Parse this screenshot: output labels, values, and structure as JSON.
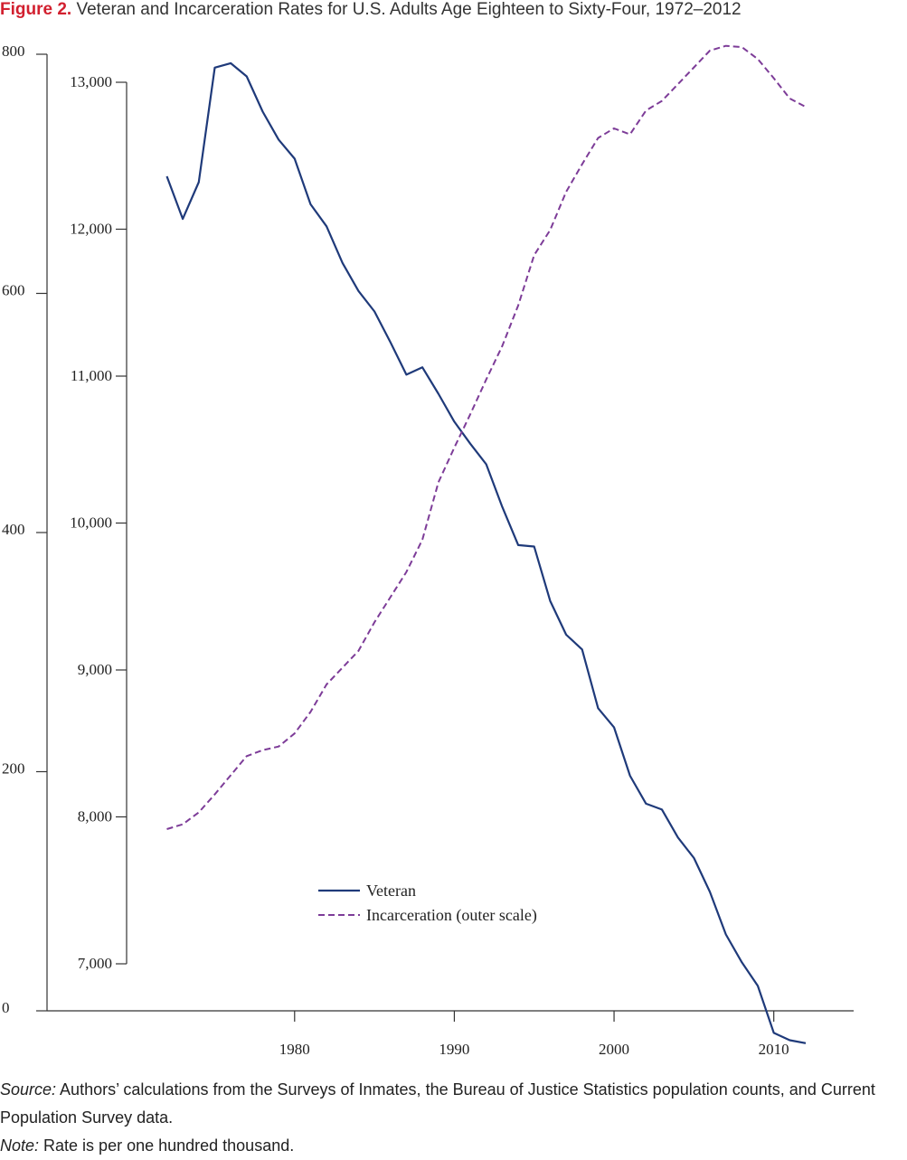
{
  "figure": {
    "label": "Figure 2.",
    "title": "Veteran and Incarceration Rates for U.S. Adults Age Eighteen to Sixty-Four, 1972–2012"
  },
  "colors": {
    "title_label": "#d2202f",
    "veteran": "#1f3a7a",
    "incarceration": "#7d3c98",
    "axis": "#333333"
  },
  "chart_data": {
    "type": "line",
    "title": "Veteran and Incarceration Rates for U.S. Adults Age Eighteen to Sixty-Four, 1972–2012",
    "xlabel": "",
    "ylabel": "",
    "x_ticks": [
      1980,
      1990,
      2000,
      2010
    ],
    "x_tick_labels": [
      "1980",
      "1990",
      "2000",
      "2010"
    ],
    "xlim": [
      1964.5,
      2015
    ],
    "outer_axis": {
      "ylim": [
        0,
        800
      ],
      "ticks": [
        0,
        200,
        400,
        600,
        800
      ],
      "tick_labels": [
        "0",
        "200",
        "400",
        "600",
        "800"
      ]
    },
    "inner_axis": {
      "ylim": [
        6680,
        13180
      ],
      "ticks": [
        7000,
        8000,
        9000,
        10000,
        11000,
        12000,
        13000
      ],
      "tick_labels": [
        "7,000",
        "8,000",
        "9,000",
        "10,000",
        "11,000",
        "12,000",
        "13,000"
      ]
    },
    "grid": false,
    "legend_position": "lower-center",
    "series": [
      {
        "name": "Veteran",
        "axis": "inner",
        "style": "solid",
        "x": [
          1972,
          1973,
          1974,
          1975,
          1976,
          1977,
          1978,
          1979,
          1980,
          1981,
          1982,
          1983,
          1984,
          1985,
          1986,
          1987,
          1988,
          1989,
          1990,
          1991,
          1992,
          1993,
          1994,
          1995,
          1996,
          1997,
          1998,
          1999,
          2000,
          2001,
          2002,
          2003,
          2004,
          2005,
          2006,
          2007,
          2008,
          2009,
          2010,
          2011,
          2012
        ],
        "values": [
          12360,
          12070,
          12320,
          13100,
          13130,
          13040,
          12800,
          12610,
          12480,
          12170,
          12020,
          11770,
          11580,
          11440,
          11230,
          11010,
          11060,
          10880,
          10690,
          10540,
          10400,
          10110,
          9850,
          9840,
          9470,
          9240,
          9140,
          8740,
          8610,
          8280,
          8090,
          8050,
          7860,
          7720,
          7490,
          7200,
          7010,
          6850,
          6530,
          6480,
          6460
        ]
      },
      {
        "name": "Incarceration (outer scale)",
        "axis": "outer",
        "style": "dashed",
        "x": [
          1972,
          1973,
          1974,
          1975,
          1976,
          1977,
          1978,
          1979,
          1980,
          1981,
          1982,
          1983,
          1984,
          1985,
          1986,
          1987,
          1988,
          1989,
          1990,
          1991,
          1992,
          1993,
          1994,
          1995,
          1996,
          1997,
          1998,
          1999,
          2000,
          2001,
          2002,
          2003,
          2004,
          2005,
          2006,
          2007,
          2008,
          2009,
          2010,
          2011,
          2012
        ],
        "values": [
          152,
          156,
          166,
          181,
          197,
          213,
          218,
          221,
          232,
          250,
          273,
          287,
          301,
          325,
          346,
          367,
          394,
          442,
          471,
          499,
          528,
          556,
          590,
          632,
          653,
          685,
          708,
          730,
          738,
          733,
          753,
          761,
          775,
          789,
          803,
          807,
          806,
          796,
          780,
          763,
          756
        ]
      }
    ]
  },
  "legend": {
    "veteran_label": "Veteran",
    "incarceration_label": "Incarceration (outer scale)"
  },
  "notes": {
    "source_label": "Source:",
    "source_text": " Authors’ calculations from the Surveys of Inmates, the Bureau of Justice Statistics population counts, and Current Population Survey data.",
    "note_label": "Note:",
    "note_text": " Rate is per one hundred thousand."
  }
}
